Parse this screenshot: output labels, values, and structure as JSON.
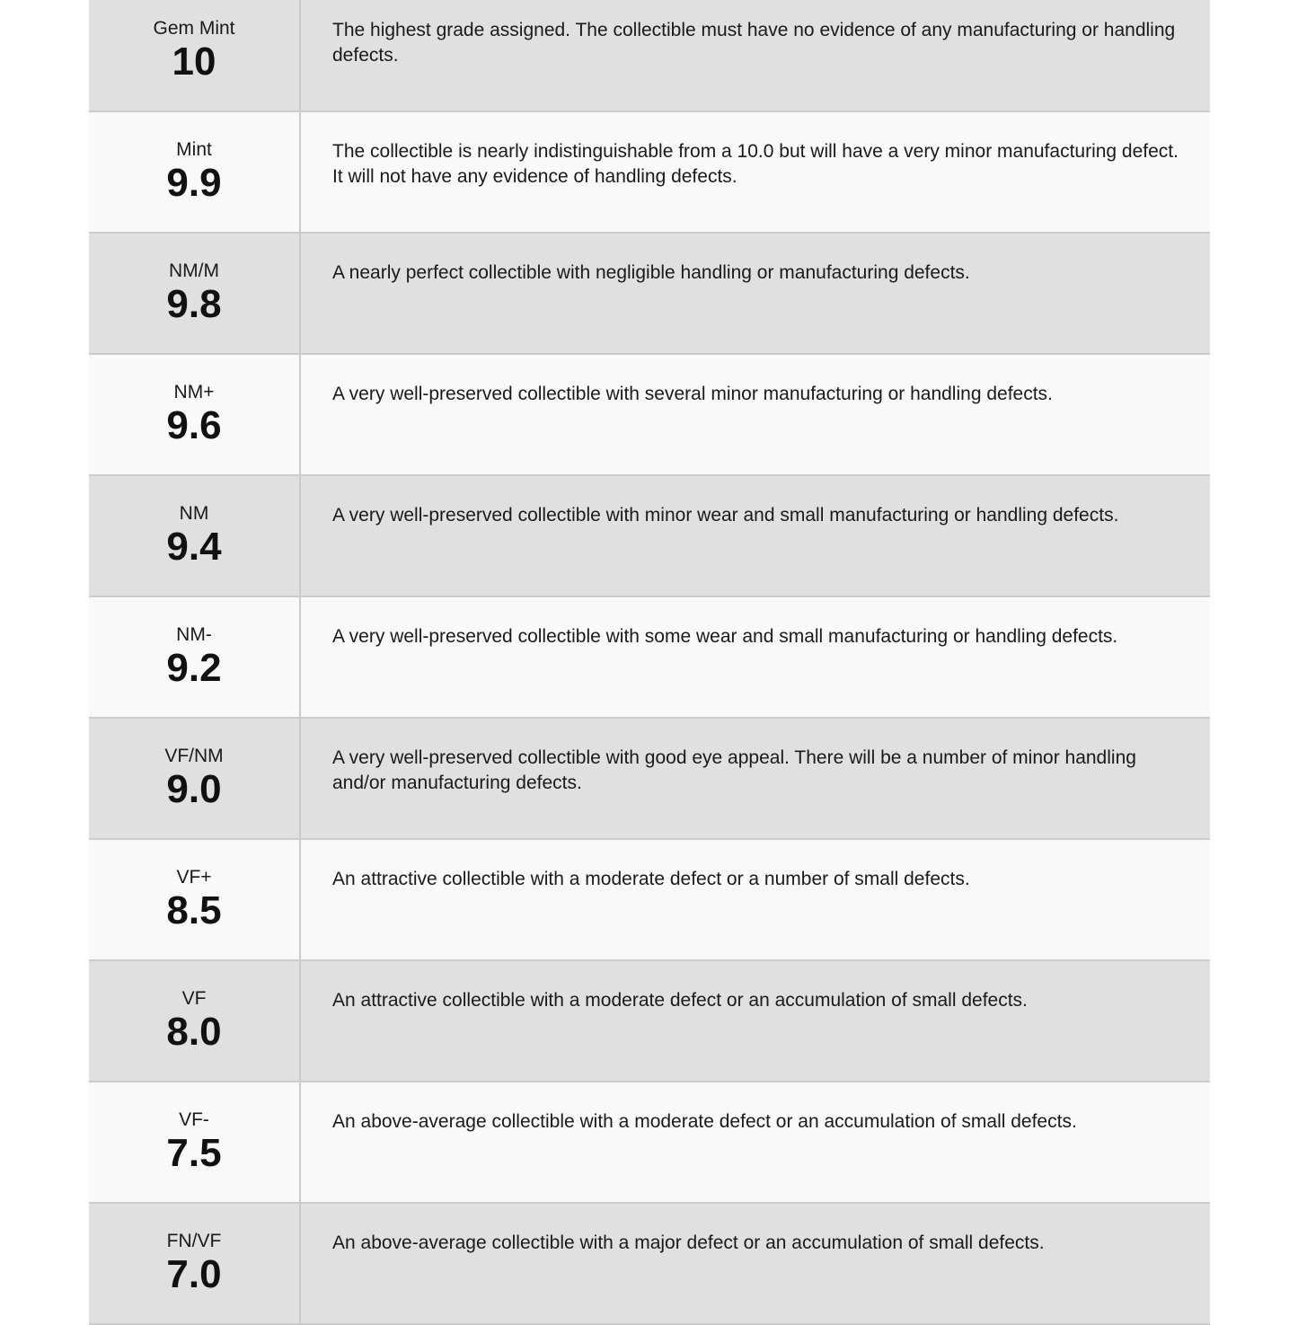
{
  "grades": [
    {
      "label": "Gem Mint",
      "value": "10",
      "description": "The highest grade assigned. The collectible must have no evidence of any manufacturing or handling defects."
    },
    {
      "label": "Mint",
      "value": "9.9",
      "description": "The collectible is nearly indistinguishable from a 10.0 but will have a very minor manufacturing defect. It will not have any evidence of handling defects."
    },
    {
      "label": "NM/M",
      "value": "9.8",
      "description": "A nearly perfect collectible with negligible handling or manufacturing defects."
    },
    {
      "label": "NM+",
      "value": "9.6",
      "description": "A very well-preserved collectible with several minor manufacturing or handling defects."
    },
    {
      "label": "NM",
      "value": "9.4",
      "description": "A very well-preserved collectible with minor wear and small manufacturing or handling defects."
    },
    {
      "label": "NM-",
      "value": "9.2",
      "description": "A very well-preserved collectible with some wear and small manufacturing or handling defects."
    },
    {
      "label": "VF/NM",
      "value": "9.0",
      "description": "A very well-preserved collectible with good eye appeal. There will be a number of minor handling and/or manufacturing defects."
    },
    {
      "label": "VF+",
      "value": "8.5",
      "description": "An attractive collectible with a moderate defect or a number of small defects."
    },
    {
      "label": "VF",
      "value": "8.0",
      "description": "An attractive collectible with a moderate defect or an accumulation of small defects."
    },
    {
      "label": "VF-",
      "value": "7.5",
      "description": "An above-average collectible with a moderate defect or an accumulation of small defects."
    },
    {
      "label": "FN/VF",
      "value": "7.0",
      "description": "An above-average collectible with a major defect or an accumulation of small defects."
    }
  ],
  "colors": {
    "row_shaded": "#e0e0e0",
    "row_light": "#f9f9f9",
    "border": "#cbcbcb"
  }
}
